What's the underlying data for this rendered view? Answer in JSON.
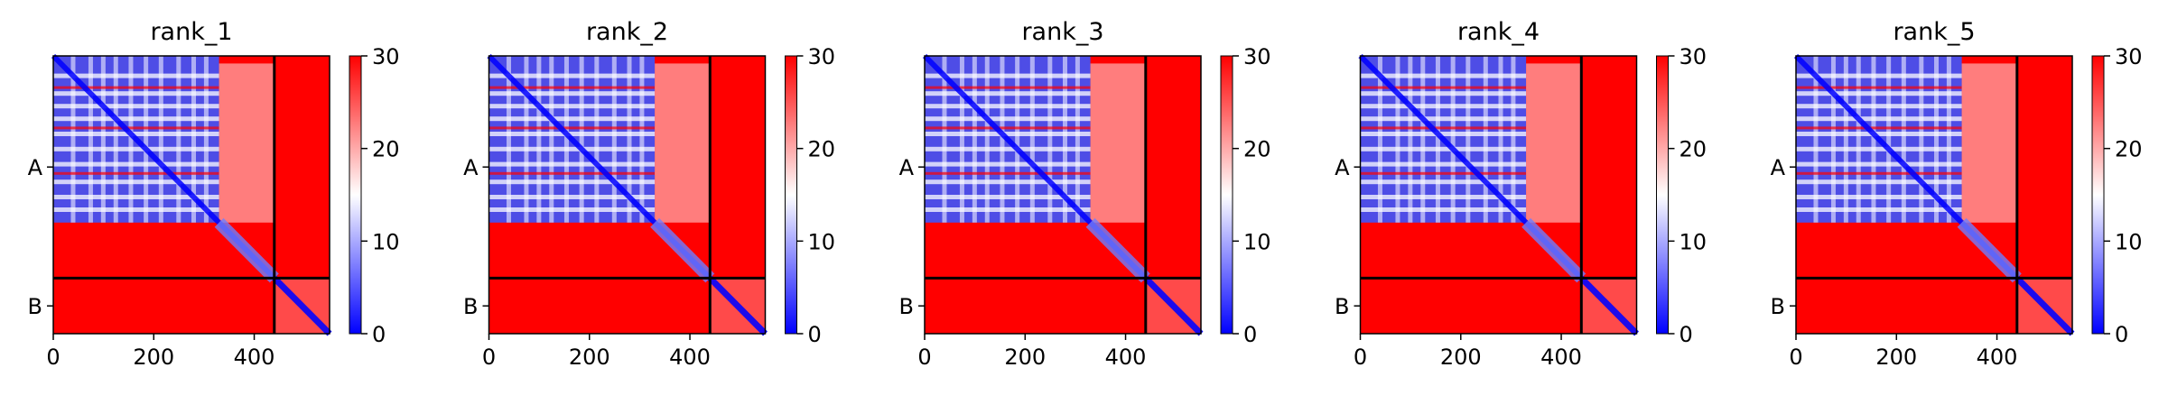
{
  "colors": {
    "low": "#0000ff",
    "mid": "#ffffff",
    "high": "#ff0000",
    "frame": "#000000",
    "background": "#ffffff"
  },
  "chart_data": [
    {
      "type": "heatmap",
      "title": "rank_1",
      "x_ticks": [
        0,
        200,
        400
      ],
      "xlim": [
        0,
        550
      ],
      "y_tick_labels": [
        "A",
        "B"
      ],
      "chain_boundary": 440,
      "colorbar": {
        "ticks": [
          0,
          10,
          20,
          30
        ],
        "range": [
          0,
          30
        ],
        "colormap": "bwr"
      }
    },
    {
      "type": "heatmap",
      "title": "rank_2",
      "x_ticks": [
        0,
        200,
        400
      ],
      "xlim": [
        0,
        550
      ],
      "y_tick_labels": [
        "A",
        "B"
      ],
      "chain_boundary": 440,
      "colorbar": {
        "ticks": [
          0,
          10,
          20,
          30
        ],
        "range": [
          0,
          30
        ],
        "colormap": "bwr"
      }
    },
    {
      "type": "heatmap",
      "title": "rank_3",
      "x_ticks": [
        0,
        200,
        400
      ],
      "xlim": [
        0,
        550
      ],
      "y_tick_labels": [
        "A",
        "B"
      ],
      "chain_boundary": 440,
      "colorbar": {
        "ticks": [
          0,
          10,
          20,
          30
        ],
        "range": [
          0,
          30
        ],
        "colormap": "bwr"
      }
    },
    {
      "type": "heatmap",
      "title": "rank_4",
      "x_ticks": [
        0,
        200,
        400
      ],
      "xlim": [
        0,
        550
      ],
      "y_tick_labels": [
        "A",
        "B"
      ],
      "chain_boundary": 440,
      "colorbar": {
        "ticks": [
          0,
          10,
          20,
          30
        ],
        "range": [
          0,
          30
        ],
        "colormap": "bwr"
      }
    },
    {
      "type": "heatmap",
      "title": "rank_5",
      "x_ticks": [
        0,
        200,
        400
      ],
      "xlim": [
        0,
        550
      ],
      "y_tick_labels": [
        "A",
        "B"
      ],
      "chain_boundary": 440,
      "colorbar": {
        "ticks": [
          0,
          10,
          20,
          30
        ],
        "range": [
          0,
          30
        ],
        "colormap": "bwr"
      }
    }
  ]
}
